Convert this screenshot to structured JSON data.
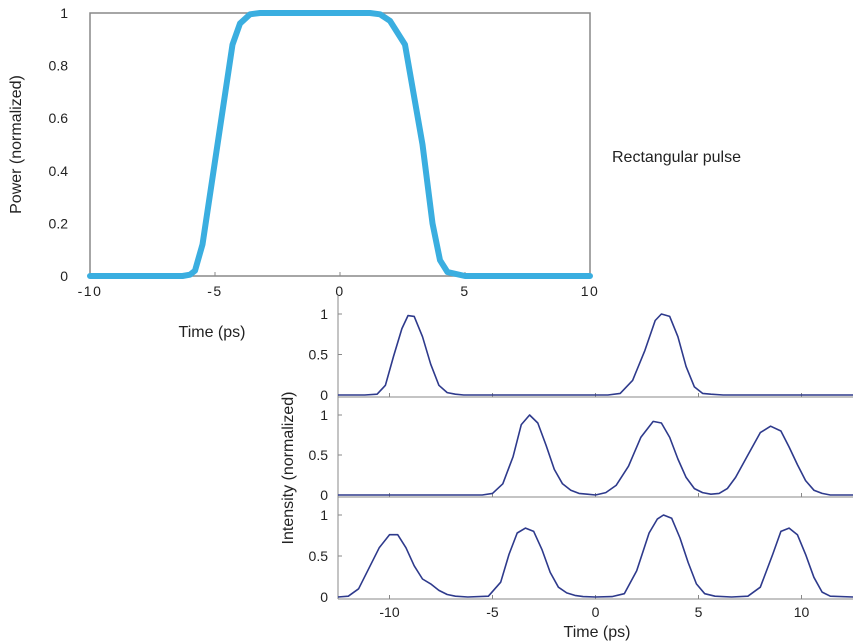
{
  "caption": "Rectangular pulse",
  "colors": {
    "top_line": "#3aaee0",
    "bottom_line": "#2e3a8c",
    "axis": "#888888",
    "text": "#222222"
  },
  "chart_data": [
    {
      "type": "line",
      "title": "",
      "xlabel": "Time (ps)",
      "ylabel": "Power (normalized)",
      "xlim": [
        -10,
        10
      ],
      "ylim": [
        0,
        1
      ],
      "x_ticks": [
        -10,
        -5,
        0,
        5,
        10
      ],
      "x_tick_labels": [
        "-10",
        "-5",
        "0",
        "5",
        "10"
      ],
      "y_ticks": [
        0,
        0.2,
        0.4,
        0.6,
        0.8,
        1
      ],
      "y_tick_labels": [
        "0",
        "0.2",
        "0.4",
        "0.6",
        "0.8",
        "1"
      ],
      "grid": false,
      "series": [
        {
          "x": [
            -10,
            -6.3,
            -6.0,
            -5.8,
            -5.5,
            -4.9,
            -4.3,
            -4.0,
            -3.6,
            -3.2,
            1.2,
            1.6,
            2.0,
            2.6,
            3.3,
            3.7,
            4.0,
            4.3,
            5.0,
            10
          ],
          "y": [
            0,
            0,
            0.005,
            0.02,
            0.12,
            0.5,
            0.88,
            0.96,
            0.995,
            1,
            1,
            0.995,
            0.97,
            0.88,
            0.5,
            0.2,
            0.06,
            0.015,
            0,
            0
          ]
        }
      ]
    },
    {
      "type": "line",
      "title": "",
      "xlabel": "Time (ps)",
      "ylabel": "Intensity (normalized)",
      "xlim": [
        -12.5,
        12.5
      ],
      "ylim": [
        0,
        1
      ],
      "x_ticks": [
        -10,
        -5,
        0,
        5,
        10
      ],
      "x_tick_labels": [
        "-10",
        "-5",
        "0",
        "5",
        "10"
      ],
      "y_ticks": [
        0,
        0.5,
        1
      ],
      "y_tick_labels": [
        "0",
        "0.5",
        "1"
      ],
      "panels": [
        {
          "series": [
            {
              "x": [
                -12.5,
                -11.2,
                -10.6,
                -10.2,
                -9.8,
                -9.4,
                -9.1,
                -8.8,
                -8.4,
                -8.0,
                -7.6,
                -7.2,
                -6.8,
                -6.4,
                0.6,
                1.2,
                1.8,
                2.4,
                2.9,
                3.2,
                3.6,
                4.0,
                4.4,
                4.8,
                5.2,
                5.6,
                6.2,
                12.5
              ],
              "y": [
                0,
                0,
                0.01,
                0.12,
                0.48,
                0.82,
                0.98,
                0.97,
                0.72,
                0.38,
                0.12,
                0.03,
                0.01,
                0,
                0,
                0.02,
                0.18,
                0.55,
                0.92,
                1.0,
                0.97,
                0.72,
                0.35,
                0.1,
                0.02,
                0.01,
                0,
                0
              ]
            }
          ]
        },
        {
          "series": [
            {
              "x": [
                -12.5,
                -5.5,
                -5.0,
                -4.5,
                -4.0,
                -3.6,
                -3.2,
                -2.8,
                -2.4,
                -2.0,
                -1.6,
                -1.2,
                -0.8,
                -0.4,
                0,
                0.5,
                1.0,
                1.6,
                2.2,
                2.8,
                3.2,
                3.6,
                4.0,
                4.4,
                4.8,
                5.2,
                5.6,
                6.0,
                6.4,
                6.8,
                7.4,
                8.0,
                8.5,
                9.0,
                9.4,
                9.8,
                10.2,
                10.6,
                11.0,
                11.4,
                12.5
              ],
              "y": [
                0,
                0,
                0.02,
                0.14,
                0.48,
                0.88,
                1.0,
                0.9,
                0.62,
                0.32,
                0.14,
                0.06,
                0.02,
                0.01,
                0,
                0.03,
                0.12,
                0.36,
                0.72,
                0.92,
                0.9,
                0.72,
                0.45,
                0.22,
                0.08,
                0.03,
                0.01,
                0.02,
                0.08,
                0.22,
                0.5,
                0.78,
                0.86,
                0.8,
                0.6,
                0.38,
                0.18,
                0.06,
                0.02,
                0,
                0
              ]
            }
          ]
        },
        {
          "series": [
            {
              "x": [
                -12.5,
                -12.0,
                -11.5,
                -11.0,
                -10.5,
                -10.0,
                -9.6,
                -9.2,
                -8.8,
                -8.4,
                -8.0,
                -7.6,
                -7.2,
                -6.8,
                -6.2,
                -5.2,
                -4.6,
                -4.2,
                -3.8,
                -3.4,
                -3.0,
                -2.6,
                -2.2,
                -1.8,
                -1.4,
                -1.0,
                -0.6,
                0,
                0.8,
                1.4,
                2.0,
                2.6,
                3.0,
                3.3,
                3.7,
                4.1,
                4.5,
                4.9,
                5.3,
                5.8,
                6.6,
                7.4,
                8.0,
                8.6,
                9.0,
                9.4,
                9.8,
                10.2,
                10.6,
                11.0,
                11.4,
                12.5
              ],
              "y": [
                0,
                0.01,
                0.1,
                0.35,
                0.6,
                0.76,
                0.76,
                0.6,
                0.38,
                0.22,
                0.16,
                0.08,
                0.03,
                0.01,
                0,
                0.01,
                0.18,
                0.52,
                0.78,
                0.84,
                0.8,
                0.58,
                0.3,
                0.12,
                0.05,
                0.02,
                0.005,
                0,
                0.005,
                0.04,
                0.32,
                0.78,
                0.95,
                1.0,
                0.96,
                0.72,
                0.42,
                0.16,
                0.04,
                0.01,
                0,
                0.01,
                0.12,
                0.52,
                0.8,
                0.84,
                0.76,
                0.52,
                0.24,
                0.06,
                0.01,
                0
              ]
            }
          ]
        }
      ]
    }
  ]
}
